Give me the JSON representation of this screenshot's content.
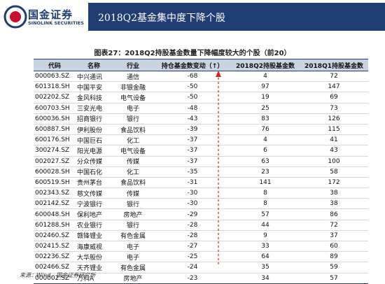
{
  "header": {
    "logo_cn": "国金证券",
    "logo_en": "SINOLINK SECURITIES",
    "title": "2018Q2基金集中度下降个股"
  },
  "caption": "图表27：2018Q2持股基金数量下降幅度较大的个股（前20）",
  "table": {
    "columns": [
      "代码",
      "名称",
      "行业",
      "持仓基金数变动（↑）",
      "2018Q2持股基金数",
      "2018Q1持股基金数"
    ],
    "rows": [
      [
        "000063.SZ",
        "中兴通讯",
        "通信",
        -68,
        4,
        72
      ],
      [
        "601318.SH",
        "中国平安",
        "非银金融",
        -50,
        97,
        147
      ],
      [
        "002202.SZ",
        "金风科技",
        "电气设备",
        -50,
        19,
        69
      ],
      [
        "600703.SH",
        "三安光电",
        "电子",
        -48,
        25,
        73
      ],
      [
        "600036.SH",
        "招商银行",
        "银行",
        -43,
        83,
        126
      ],
      [
        "600887.SH",
        "伊利股份",
        "食品饮料",
        -39,
        76,
        115
      ],
      [
        "600176.SH",
        "中国巨石",
        "化工",
        -37,
        4,
        41
      ],
      [
        "300274.SZ",
        "阳光电源",
        "电气设备",
        -37,
        6,
        43
      ],
      [
        "002027.SZ",
        "分众传媒",
        "传媒",
        -37,
        63,
        100
      ],
      [
        "600028.SH",
        "中国石化",
        "化工",
        -35,
        23,
        58
      ],
      [
        "600519.SH",
        "贵州茅台",
        "食品饮料",
        -31,
        141,
        172
      ],
      [
        "002343.SZ",
        "慈文传媒",
        "传媒",
        -30,
        8,
        38
      ],
      [
        "002142.SZ",
        "宁波银行",
        "银行",
        -30,
        8,
        38
      ],
      [
        "600048.SH",
        "保利地产",
        "房地产",
        -29,
        57,
        86
      ],
      [
        "601288.SH",
        "农业银行",
        "银行",
        -28,
        44,
        72
      ],
      [
        "002460.SZ",
        "赣锋锂业",
        "有色金属",
        -28,
        9,
        37
      ],
      [
        "002415.SZ",
        "海康威视",
        "电子",
        -27,
        33,
        60
      ],
      [
        "002236.SZ",
        "大华股份",
        "电子",
        -25,
        64,
        89
      ],
      [
        "002466.SZ",
        "天齐锂业",
        "有色金属",
        -24,
        35,
        59
      ],
      [
        "000002.SZ",
        "万科A",
        "房地产",
        -23,
        34,
        57
      ]
    ]
  },
  "source": "来源：Wind、国金证券研究所"
}
